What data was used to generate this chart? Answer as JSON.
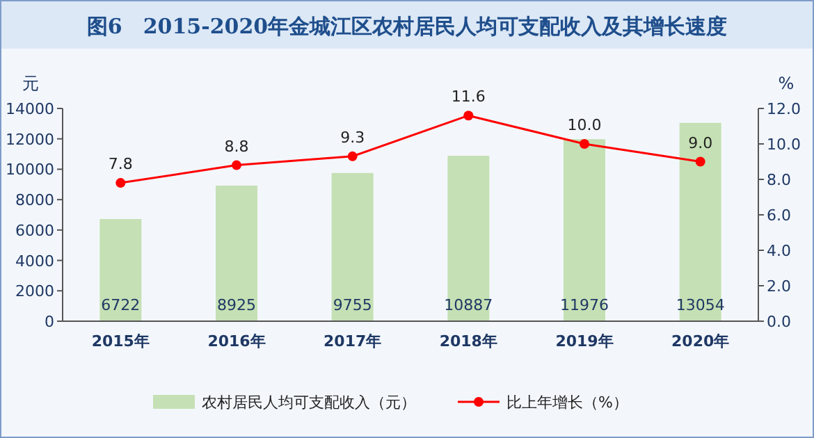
{
  "chart_data": {
    "type": "bar",
    "title": "图6　2015-2020年金城江区农村居民人均可支配收入及其增长速度",
    "ylabel": "元",
    "y2label": "%",
    "categories": [
      "2015年",
      "2016年",
      "2017年",
      "2018年",
      "2019年",
      "2020年"
    ],
    "series": [
      {
        "name": "农村居民人均可支配收入（元）",
        "color": "#c5e0b4",
        "values": [
          6722,
          8925,
          9755,
          10887,
          11976,
          13054
        ],
        "value_labels": [
          "6722",
          "8925",
          "9755",
          "10887",
          "11976",
          "13054"
        ]
      },
      {
        "name": "比上年增长（%）",
        "type": "line",
        "axis": "y2",
        "color": "#ff0000",
        "marker": "circle",
        "values": [
          7.8,
          8.8,
          9.3,
          11.6,
          10.0,
          9.0
        ],
        "value_labels": [
          "7.8",
          "8.8",
          "9.3",
          "11.6",
          "10.0",
          "9.0"
        ]
      }
    ],
    "ylim": [
      0,
      14000
    ],
    "yticks": [
      0,
      2000,
      4000,
      6000,
      8000,
      10000,
      12000,
      14000
    ],
    "y2lim": [
      0,
      12
    ],
    "y2ticks": [
      {
        "value": 0,
        "label": "0.0"
      },
      {
        "value": 2,
        "label": "2.0"
      },
      {
        "value": 4,
        "label": "4.0"
      },
      {
        "value": 6,
        "label": "6.0"
      },
      {
        "value": 8,
        "label": "8.0"
      },
      {
        "value": 10,
        "label": "10.0"
      },
      {
        "value": 12,
        "label": "12.0"
      }
    ],
    "legend": "bottom"
  }
}
